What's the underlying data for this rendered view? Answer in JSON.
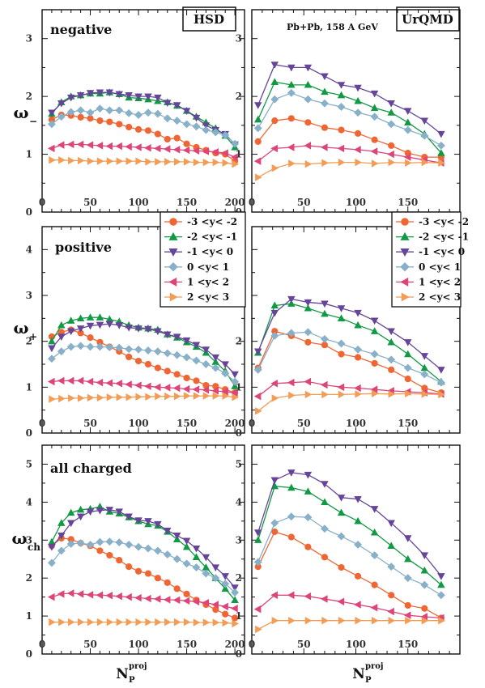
{
  "figure": {
    "model_labels": [
      "HSD",
      "UrQMD"
    ],
    "subtitle": "Pb+Pb,  158 A GeV",
    "row_labels": [
      "negative",
      "positive",
      "all charged"
    ],
    "y_axis_labels": [
      {
        "main": "ω",
        "sub": "−"
      },
      {
        "main": "ω",
        "sub": "+"
      },
      {
        "main": "ω",
        "sub": "ch"
      }
    ],
    "x_axis_label": {
      "main": "N",
      "sub": "P",
      "sup": "proj"
    },
    "legend_entries": [
      "-3 <y< -2",
      "-2 <y< -1",
      "-1 <y< 0",
      "0 <y< 1",
      "1 <y< 2",
      "2 <y< 3"
    ],
    "series_colors": [
      "#ee6633",
      "#119944",
      "#664499",
      "#88b0c8",
      "#dd4477",
      "#f39c55"
    ],
    "series_markers": [
      "circle",
      "triangle-up",
      "triangle-down",
      "diamond",
      "triangle-left",
      "triangle-right"
    ]
  },
  "chart_data": [
    {
      "type": "line",
      "model": "HSD",
      "row": "negative",
      "xlim": [
        0,
        210
      ],
      "ylim": [
        0,
        3.5
      ],
      "xticks": [
        0,
        50,
        100,
        150,
        200
      ],
      "yticks": [
        0,
        1,
        2,
        3
      ],
      "x": [
        10,
        20,
        30,
        40,
        50,
        60,
        70,
        80,
        90,
        100,
        110,
        120,
        130,
        140,
        150,
        160,
        170,
        180,
        190,
        200
      ],
      "series": [
        {
          "name": "-3 <y< -2",
          "values": [
            1.6,
            1.68,
            1.67,
            1.64,
            1.62,
            1.58,
            1.56,
            1.52,
            1.47,
            1.43,
            1.41,
            1.35,
            1.26,
            1.28,
            1.18,
            1.12,
            1.07,
            1.02,
            1.0,
            0.88
          ]
        },
        {
          "name": "-2 <y< -1",
          "values": [
            1.7,
            1.9,
            2.0,
            2.02,
            2.05,
            2.05,
            2.07,
            2.04,
            1.98,
            1.97,
            1.95,
            1.92,
            1.9,
            1.84,
            1.75,
            1.65,
            1.55,
            1.45,
            1.32,
            1.12
          ]
        },
        {
          "name": "-1 <y< 0",
          "values": [
            1.72,
            1.88,
            1.98,
            2.02,
            2.06,
            2.07,
            2.07,
            2.04,
            2.02,
            2.0,
            2.0,
            1.98,
            1.89,
            1.85,
            1.75,
            1.63,
            1.5,
            1.42,
            1.35,
            1.17
          ]
        },
        {
          "name": "0 <y< 1",
          "values": [
            1.52,
            1.65,
            1.73,
            1.76,
            1.72,
            1.79,
            1.76,
            1.76,
            1.71,
            1.68,
            1.72,
            1.7,
            1.62,
            1.58,
            1.52,
            1.48,
            1.42,
            1.38,
            1.33,
            1.18
          ]
        },
        {
          "name": "1 <y< 2",
          "values": [
            1.1,
            1.16,
            1.17,
            1.17,
            1.16,
            1.15,
            1.14,
            1.14,
            1.13,
            1.12,
            1.11,
            1.1,
            1.09,
            1.08,
            1.07,
            1.06,
            1.05,
            1.04,
            1.02,
            0.95
          ]
        },
        {
          "name": "2 <y< 3",
          "values": [
            0.9,
            0.9,
            0.89,
            0.89,
            0.88,
            0.88,
            0.88,
            0.88,
            0.88,
            0.88,
            0.87,
            0.87,
            0.87,
            0.87,
            0.87,
            0.86,
            0.86,
            0.86,
            0.85,
            0.83
          ]
        }
      ]
    },
    {
      "type": "line",
      "model": "UrQMD",
      "row": "negative",
      "xlim": [
        0,
        200
      ],
      "ylim": [
        0,
        3.5
      ],
      "xticks": [
        0,
        50,
        100,
        150
      ],
      "yticks": [
        0,
        1,
        2,
        3
      ],
      "x": [
        6,
        22,
        38,
        54,
        70,
        86,
        102,
        118,
        134,
        150,
        166,
        182
      ],
      "series": [
        {
          "name": "-3 <y< -2",
          "values": [
            1.22,
            1.58,
            1.62,
            1.55,
            1.46,
            1.42,
            1.36,
            1.25,
            1.15,
            1.02,
            0.95,
            0.95
          ]
        },
        {
          "name": "-2 <y< -1",
          "values": [
            1.6,
            2.25,
            2.2,
            2.2,
            2.08,
            2.02,
            1.92,
            1.8,
            1.72,
            1.55,
            1.35,
            1.02
          ]
        },
        {
          "name": "-1 <y< 0",
          "values": [
            1.85,
            2.55,
            2.5,
            2.5,
            2.35,
            2.2,
            2.15,
            2.05,
            1.88,
            1.75,
            1.58,
            1.35
          ]
        },
        {
          "name": "0 <y< 1",
          "values": [
            1.45,
            1.95,
            2.06,
            1.95,
            1.88,
            1.82,
            1.72,
            1.65,
            1.52,
            1.42,
            1.32,
            1.15
          ]
        },
        {
          "name": "1 <y< 2",
          "values": [
            0.88,
            1.1,
            1.12,
            1.15,
            1.12,
            1.1,
            1.08,
            1.05,
            1.0,
            0.95,
            0.9,
            0.85
          ]
        },
        {
          "name": "2 <y< 3",
          "values": [
            0.6,
            0.76,
            0.84,
            0.83,
            0.85,
            0.86,
            0.86,
            0.84,
            0.86,
            0.85,
            0.86,
            0.85
          ]
        }
      ]
    },
    {
      "type": "line",
      "model": "HSD",
      "row": "positive",
      "xlim": [
        0,
        210
      ],
      "ylim": [
        0,
        4.5
      ],
      "xticks": [
        0,
        50,
        100,
        150,
        200
      ],
      "yticks": [
        0,
        1,
        2,
        3,
        4
      ],
      "x": [
        10,
        20,
        30,
        40,
        50,
        60,
        70,
        80,
        90,
        100,
        110,
        120,
        130,
        140,
        150,
        160,
        170,
        180,
        190,
        200
      ],
      "series": [
        {
          "name": "-3 <y< -2",
          "values": [
            2.1,
            2.2,
            2.25,
            2.18,
            2.08,
            1.98,
            1.88,
            1.78,
            1.66,
            1.57,
            1.5,
            1.42,
            1.35,
            1.28,
            1.2,
            1.14,
            1.04,
            1.02,
            0.95,
            0.88
          ]
        },
        {
          "name": "-2 <y< -1",
          "values": [
            2.0,
            2.35,
            2.45,
            2.5,
            2.52,
            2.52,
            2.48,
            2.43,
            2.35,
            2.3,
            2.28,
            2.25,
            2.15,
            2.08,
            1.98,
            1.88,
            1.75,
            1.55,
            1.35,
            1.02
          ]
        },
        {
          "name": "-1 <y< 0",
          "values": [
            1.85,
            2.1,
            2.22,
            2.28,
            2.34,
            2.36,
            2.38,
            2.35,
            2.3,
            2.28,
            2.27,
            2.22,
            2.15,
            2.1,
            2.02,
            1.92,
            1.82,
            1.65,
            1.5,
            1.28
          ]
        },
        {
          "name": "0 <y< 1",
          "values": [
            1.62,
            1.78,
            1.88,
            1.9,
            1.88,
            1.88,
            1.87,
            1.86,
            1.83,
            1.82,
            1.8,
            1.78,
            1.74,
            1.7,
            1.65,
            1.58,
            1.5,
            1.42,
            1.3,
            1.12
          ]
        },
        {
          "name": "1 <y< 2",
          "values": [
            1.12,
            1.14,
            1.14,
            1.14,
            1.12,
            1.1,
            1.09,
            1.08,
            1.06,
            1.04,
            1.02,
            1.0,
            0.99,
            0.98,
            0.96,
            0.95,
            0.94,
            0.92,
            0.9,
            0.88
          ]
        },
        {
          "name": "2 <y< 3",
          "values": [
            0.74,
            0.75,
            0.76,
            0.76,
            0.77,
            0.77,
            0.78,
            0.78,
            0.78,
            0.79,
            0.79,
            0.8,
            0.8,
            0.8,
            0.81,
            0.81,
            0.81,
            0.81,
            0.81,
            0.78
          ]
        }
      ]
    },
    {
      "type": "line",
      "model": "UrQMD",
      "row": "positive",
      "xlim": [
        0,
        200
      ],
      "ylim": [
        0,
        4.5
      ],
      "xticks": [
        0,
        50,
        100,
        150
      ],
      "yticks": [
        0,
        1,
        2,
        3,
        4
      ],
      "x": [
        6,
        22,
        38,
        54,
        70,
        86,
        102,
        118,
        134,
        150,
        166,
        182
      ],
      "series": [
        {
          "name": "-3 <y< -2",
          "values": [
            1.42,
            2.22,
            2.12,
            1.98,
            1.92,
            1.72,
            1.65,
            1.52,
            1.38,
            1.18,
            0.98,
            0.88
          ]
        },
        {
          "name": "-2 <y< -1",
          "values": [
            1.75,
            2.78,
            2.82,
            2.72,
            2.6,
            2.5,
            2.35,
            2.22,
            1.98,
            1.72,
            1.42,
            1.12
          ]
        },
        {
          "name": "-1 <y< 0",
          "values": [
            1.78,
            2.62,
            2.92,
            2.85,
            2.82,
            2.72,
            2.62,
            2.45,
            2.22,
            1.98,
            1.68,
            1.38
          ]
        },
        {
          "name": "0 <y< 1",
          "values": [
            1.38,
            2.12,
            2.18,
            2.2,
            2.05,
            1.95,
            1.82,
            1.72,
            1.6,
            1.42,
            1.28,
            1.1
          ]
        },
        {
          "name": "1 <y< 2",
          "values": [
            0.8,
            1.08,
            1.1,
            1.12,
            1.05,
            1.0,
            0.98,
            0.95,
            0.92,
            0.9,
            0.88,
            0.85
          ]
        },
        {
          "name": "2 <y< 3",
          "values": [
            0.48,
            0.76,
            0.82,
            0.84,
            0.84,
            0.84,
            0.85,
            0.86,
            0.85,
            0.86,
            0.85,
            0.84
          ]
        }
      ]
    },
    {
      "type": "line",
      "model": "HSD",
      "row": "all charged",
      "xlim": [
        0,
        210
      ],
      "ylim": [
        0,
        5.5
      ],
      "xticks": [
        0,
        50,
        100,
        150,
        200
      ],
      "yticks": [
        0,
        1,
        2,
        3,
        4,
        5
      ],
      "x": [
        10,
        20,
        30,
        40,
        50,
        60,
        70,
        80,
        90,
        100,
        110,
        120,
        130,
        140,
        150,
        160,
        170,
        180,
        190,
        200
      ],
      "series": [
        {
          "name": "-3 <y< -2",
          "values": [
            2.85,
            3.05,
            3.02,
            2.92,
            2.85,
            2.72,
            2.6,
            2.47,
            2.3,
            2.18,
            2.12,
            2.0,
            1.88,
            1.72,
            1.58,
            1.42,
            1.3,
            1.17,
            1.05,
            0.95
          ]
        },
        {
          "name": "-2 <y< -1",
          "values": [
            2.95,
            3.45,
            3.72,
            3.8,
            3.82,
            3.88,
            3.75,
            3.7,
            3.6,
            3.5,
            3.42,
            3.38,
            3.22,
            3.02,
            2.82,
            2.55,
            2.28,
            2.0,
            1.72,
            1.42
          ]
        },
        {
          "name": "-1 <y< 0",
          "values": [
            2.82,
            3.12,
            3.45,
            3.62,
            3.75,
            3.78,
            3.8,
            3.75,
            3.62,
            3.52,
            3.5,
            3.42,
            3.25,
            3.12,
            2.98,
            2.78,
            2.55,
            2.28,
            2.05,
            1.75
          ]
        },
        {
          "name": "0 <y< 1",
          "values": [
            2.4,
            2.72,
            2.9,
            2.92,
            2.88,
            2.95,
            2.96,
            2.94,
            2.88,
            2.82,
            2.78,
            2.72,
            2.62,
            2.5,
            2.38,
            2.28,
            2.12,
            2.0,
            1.85,
            1.62
          ]
        },
        {
          "name": "1 <y< 2",
          "values": [
            1.5,
            1.58,
            1.6,
            1.58,
            1.56,
            1.55,
            1.54,
            1.52,
            1.5,
            1.48,
            1.46,
            1.45,
            1.43,
            1.42,
            1.4,
            1.38,
            1.35,
            1.3,
            1.25,
            1.2
          ]
        },
        {
          "name": "2 <y< 3",
          "values": [
            0.84,
            0.84,
            0.84,
            0.84,
            0.84,
            0.84,
            0.84,
            0.84,
            0.84,
            0.84,
            0.84,
            0.84,
            0.84,
            0.84,
            0.84,
            0.83,
            0.83,
            0.83,
            0.82,
            0.8
          ]
        }
      ]
    },
    {
      "type": "line",
      "model": "UrQMD",
      "row": "all charged",
      "xlim": [
        0,
        200
      ],
      "ylim": [
        0,
        5.5
      ],
      "xticks": [
        0,
        50,
        100,
        150
      ],
      "yticks": [
        0,
        1,
        2,
        3,
        4,
        5
      ],
      "x": [
        6,
        22,
        38,
        54,
        70,
        86,
        102,
        118,
        134,
        150,
        166,
        182
      ],
      "series": [
        {
          "name": "-3 <y< -2",
          "values": [
            2.3,
            3.22,
            3.08,
            2.82,
            2.55,
            2.28,
            2.05,
            1.82,
            1.55,
            1.28,
            1.2,
            0.95
          ]
        },
        {
          "name": "-2 <y< -1",
          "values": [
            3.0,
            4.42,
            4.38,
            4.28,
            4.0,
            3.72,
            3.5,
            3.2,
            2.85,
            2.5,
            2.2,
            1.82
          ]
        },
        {
          "name": "-1 <y< 0",
          "values": [
            3.2,
            4.58,
            4.78,
            4.72,
            4.48,
            4.12,
            4.08,
            3.82,
            3.45,
            3.05,
            2.6,
            2.05
          ]
        },
        {
          "name": "0 <y< 1",
          "values": [
            2.42,
            3.45,
            3.62,
            3.6,
            3.3,
            3.1,
            2.88,
            2.6,
            2.3,
            2.0,
            1.82,
            1.55
          ]
        },
        {
          "name": "1 <y< 2",
          "values": [
            1.18,
            1.55,
            1.55,
            1.52,
            1.45,
            1.38,
            1.3,
            1.22,
            1.12,
            1.02,
            0.98,
            0.95
          ]
        },
        {
          "name": "2 <y< 3",
          "values": [
            0.65,
            0.88,
            0.88,
            0.88,
            0.88,
            0.88,
            0.88,
            0.88,
            0.88,
            0.88,
            0.88,
            0.88
          ]
        }
      ]
    }
  ]
}
